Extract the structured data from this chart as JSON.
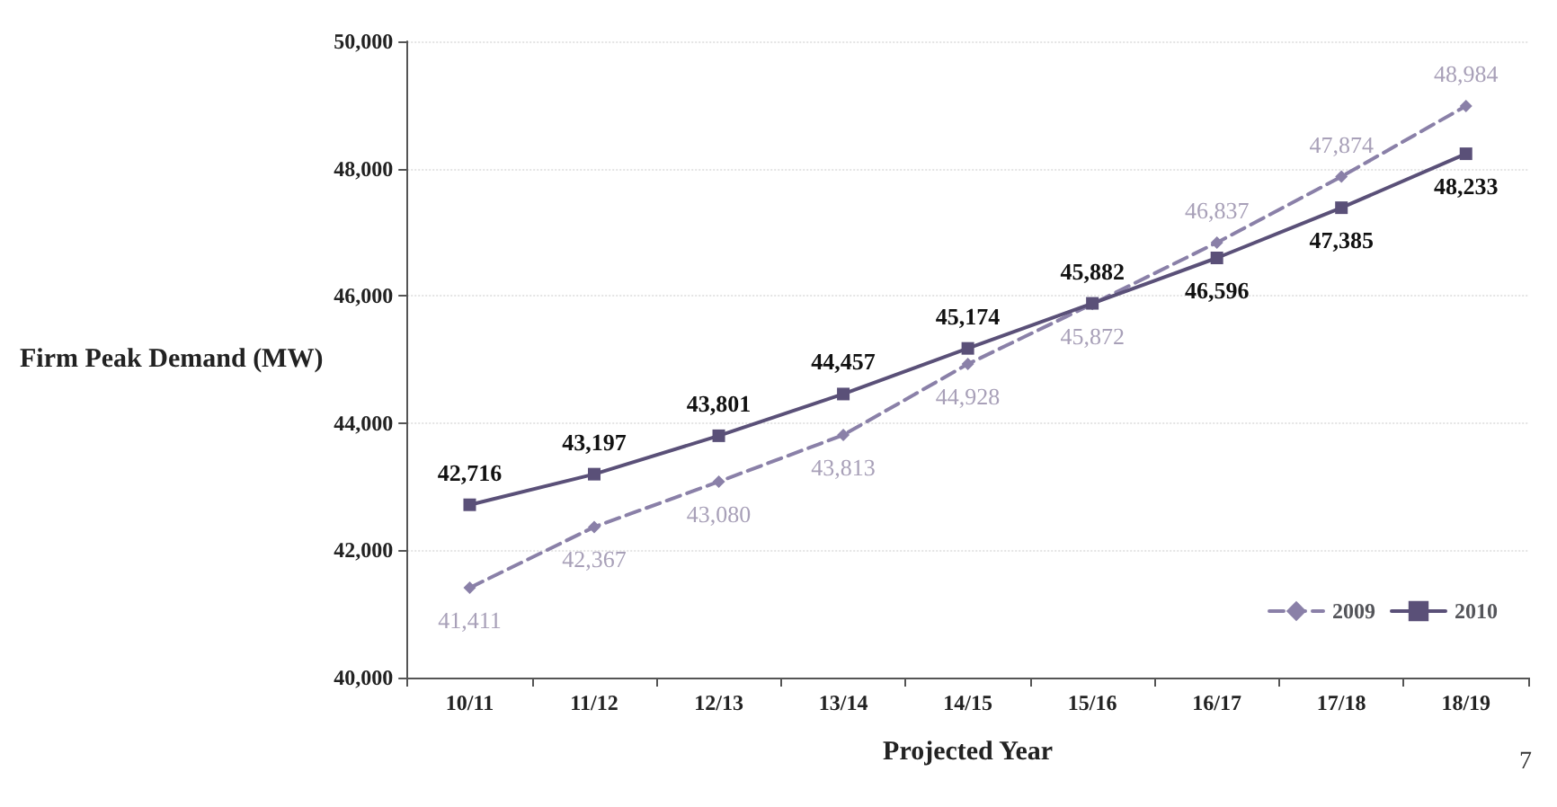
{
  "chart_data": {
    "type": "line",
    "xlabel": "Projected Year",
    "ylabel": "Firm Peak Demand (MW)",
    "categories": [
      "10/11",
      "11/12",
      "12/13",
      "13/14",
      "14/15",
      "15/16",
      "16/17",
      "17/18",
      "18/19"
    ],
    "series": [
      {
        "name": "2009",
        "color": "#8a80a8",
        "marker": "diamond",
        "line_style": "dashed",
        "values": [
          41411,
          42367,
          43080,
          43813,
          44928,
          45872,
          46837,
          47874,
          48984
        ],
        "value_labels": [
          "41,411",
          "42,367",
          "43,080",
          "43,813",
          "44,928",
          "45,872",
          "46,837",
          "47,874",
          "48,984"
        ]
      },
      {
        "name": "2010",
        "color": "#5a5078",
        "marker": "square",
        "line_style": "solid",
        "values": [
          42716,
          43197,
          43801,
          44457,
          45174,
          45882,
          46596,
          47385,
          48233
        ],
        "value_labels": [
          "42,716",
          "43,197",
          "43,801",
          "44,457",
          "45,174",
          "45,882",
          "46,596",
          "47,385",
          "48,233"
        ]
      }
    ],
    "ylim": [
      40000,
      50000
    ],
    "yticks": [
      {
        "value": 40000,
        "label": "40,000"
      },
      {
        "value": 42000,
        "label": "42,000"
      },
      {
        "value": 44000,
        "label": "44,000"
      },
      {
        "value": 46000,
        "label": "46,000"
      },
      {
        "value": 48000,
        "label": "48,000"
      },
      {
        "value": 50000,
        "label": "50,000"
      }
    ],
    "grid": "y",
    "legend": "bottom right",
    "annotations": [
      "7"
    ]
  }
}
